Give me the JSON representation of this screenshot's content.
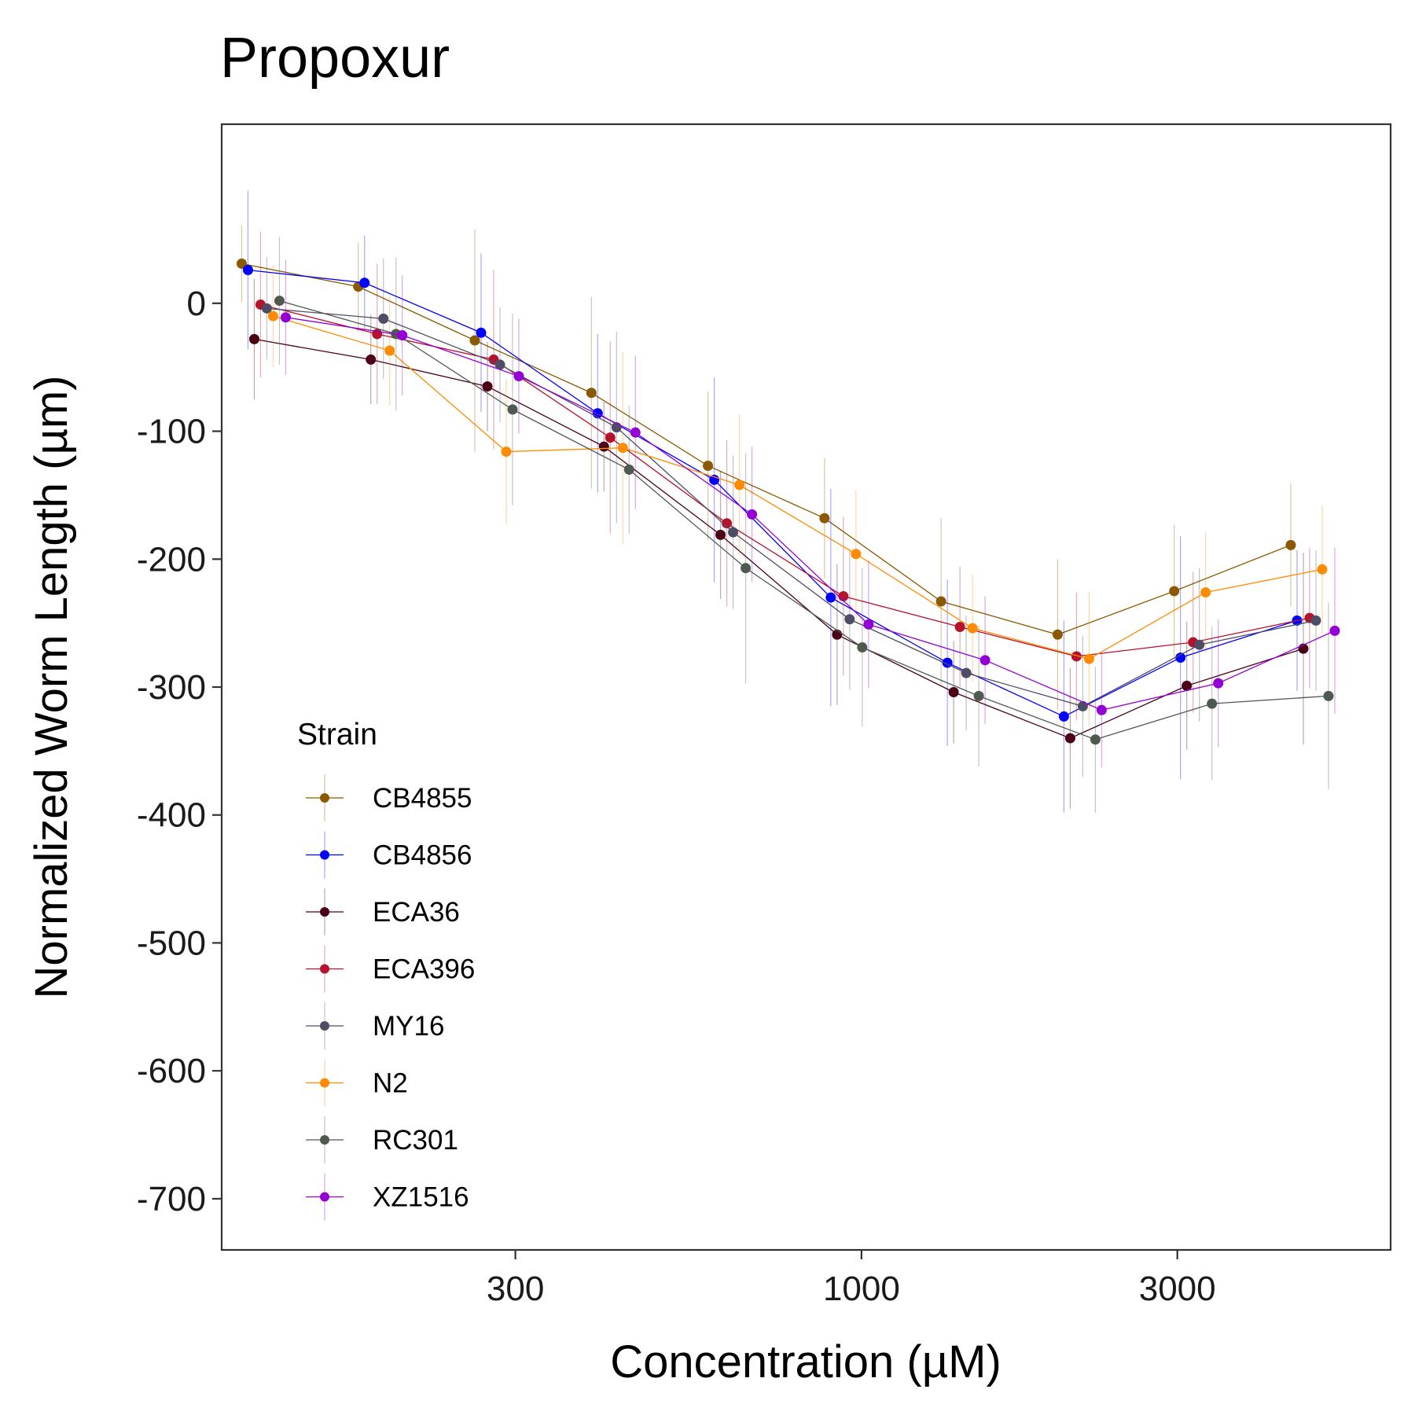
{
  "chart_data": {
    "type": "line",
    "title": "Propoxur",
    "xlabel": "Concentration (µM)",
    "ylabel": "Normalized Worm Length (µm)",
    "x_scale": "log10",
    "x": [
      125,
      187.5,
      281.25,
      421.875,
      632.8125,
      949.21875,
      1423.828,
      2135.742,
      3203.613,
      4805.42
    ],
    "xlim": [
      108,
      6300
    ],
    "ylim": [
      -740,
      140
    ],
    "x_ticks": [
      300,
      1000,
      3000
    ],
    "x_tick_labels": [
      "300",
      "1000",
      "3000"
    ],
    "y_ticks": [
      0,
      -100,
      -200,
      -300,
      -400,
      -500,
      -600,
      -700
    ],
    "y_tick_labels": [
      "0",
      "-100",
      "-200",
      "-300",
      "-400",
      "-500",
      "-600",
      "-700"
    ],
    "grid": false,
    "legend_title": "Strain",
    "legend_position": "bottom-left inside",
    "error_bars": true,
    "series": [
      {
        "name": "CB4855",
        "color": "#8B5A00",
        "values": [
          31,
          13,
          -29,
          -70,
          -127,
          -168,
          -233,
          -259,
          -225,
          -189
        ],
        "errors": [
          30,
          35,
          87,
          75,
          58,
          47,
          65,
          59,
          52,
          48
        ]
      },
      {
        "name": "CB4856",
        "color": "#0000FF",
        "values": [
          26,
          16,
          -23,
          -86,
          -138,
          -230,
          -281,
          -323,
          -277,
          -248
        ],
        "errors": [
          62,
          37,
          62,
          62,
          80,
          85,
          65,
          75,
          95,
          55
        ]
      },
      {
        "name": "ECA36",
        "color": "#4B0016",
        "values": [
          -28,
          -44,
          -65,
          -112,
          -181,
          -259,
          -304,
          -340,
          -299,
          -270
        ],
        "errors": [
          47,
          35,
          35,
          35,
          50,
          55,
          40,
          55,
          50,
          75
        ]
      },
      {
        "name": "ECA396",
        "color": "#B5122D",
        "values": [
          -1,
          -24,
          -44,
          -105,
          -172,
          -229,
          -253,
          -276,
          -265,
          -246
        ],
        "errors": [
          57,
          55,
          70,
          75,
          65,
          62,
          47,
          50,
          55,
          55
        ]
      },
      {
        "name": "MY16",
        "color": "#4D4D66",
        "values": [
          -4,
          -12,
          -48,
          -97,
          -179,
          -247,
          -289,
          -315,
          -267,
          -248
        ],
        "errors": [
          40,
          47,
          45,
          75,
          60,
          55,
          45,
          55,
          60,
          55
        ]
      },
      {
        "name": "N2",
        "color": "#FF8C00",
        "values": [
          -10,
          -37,
          -116,
          -113,
          -142,
          -196,
          -254,
          -278,
          -226,
          -208
        ],
        "errors": [
          40,
          43,
          57,
          75,
          55,
          50,
          42,
          52,
          47,
          50
        ]
      },
      {
        "name": "RC301",
        "color": "#4F5A4F",
        "values": [
          2,
          -24,
          -83,
          -130,
          -207,
          -269,
          -307,
          -341,
          -313,
          -307
        ],
        "errors": [
          50,
          60,
          75,
          50,
          90,
          62,
          55,
          57,
          60,
          73
        ]
      },
      {
        "name": "XZ1516",
        "color": "#9400D3",
        "values": [
          -11,
          -25,
          -57,
          -101,
          -165,
          -251,
          -279,
          -318,
          -297,
          -256
        ],
        "errors": [
          45,
          47,
          45,
          60,
          53,
          50,
          50,
          45,
          50,
          65
        ]
      }
    ]
  }
}
